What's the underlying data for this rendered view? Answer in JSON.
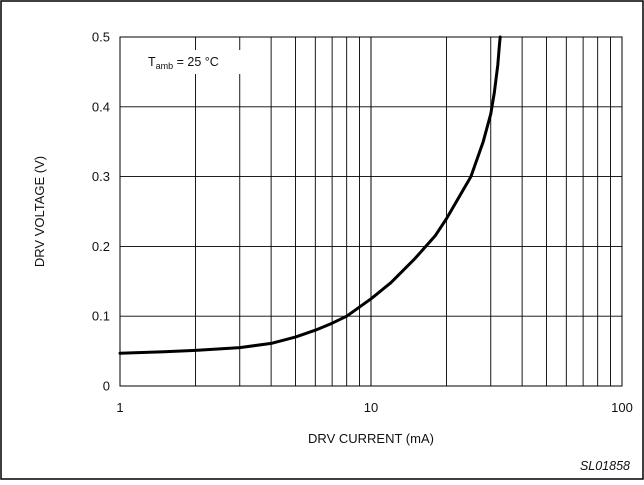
{
  "chart_data": {
    "type": "line",
    "x_scale": "log",
    "grid": true,
    "xlabel": "DRV CURRENT (mA)",
    "ylabel": "DRV VOLTAGE (V)",
    "xlim": [
      1,
      100
    ],
    "ylim": [
      0,
      0.5
    ],
    "x_ticks": [
      {
        "value": 1,
        "label": "1"
      },
      {
        "value": 10,
        "label": "10"
      },
      {
        "value": 100,
        "label": "100"
      }
    ],
    "y_ticks": [
      {
        "value": 0,
        "label": "0"
      },
      {
        "value": 0.1,
        "label": "0.1"
      },
      {
        "value": 0.2,
        "label": "0.2"
      },
      {
        "value": 0.3,
        "label": "0.3"
      },
      {
        "value": 0.4,
        "label": "0.4"
      },
      {
        "value": 0.5,
        "label": "0.5"
      }
    ],
    "annotation": {
      "prefix": "T",
      "subscript": "amb",
      "suffix": " = 25 °C"
    },
    "figure_id": "SL01858",
    "series": [
      {
        "x": [
          1,
          1.5,
          2,
          3,
          4,
          5,
          6,
          7,
          8,
          10,
          12,
          15,
          18,
          20,
          25,
          28,
          30,
          31,
          32,
          32.5,
          32.7
        ],
        "y": [
          0.047,
          0.049,
          0.051,
          0.055,
          0.061,
          0.07,
          0.08,
          0.09,
          0.1,
          0.125,
          0.148,
          0.183,
          0.215,
          0.24,
          0.3,
          0.35,
          0.39,
          0.42,
          0.46,
          0.49,
          0.5
        ]
      }
    ]
  }
}
